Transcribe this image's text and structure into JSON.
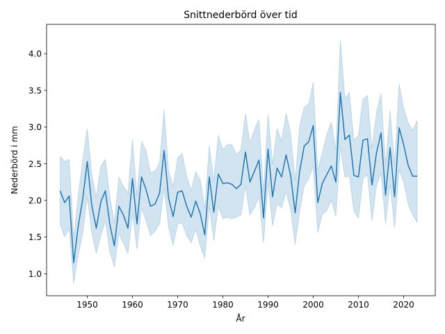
{
  "chart_data": {
    "type": "line",
    "title": "Snittnederbörd över tid",
    "xlabel": "År",
    "ylabel": "Nederbörd i mm",
    "xlim": [
      1941,
      2027
    ],
    "ylim": [
      0.7,
      4.4
    ],
    "xticks": [
      1950,
      1960,
      1970,
      1980,
      1990,
      2000,
      2010,
      2020
    ],
    "yticks": [
      1.0,
      1.5,
      2.0,
      2.5,
      3.0,
      3.5,
      4.0
    ],
    "grid": false,
    "colors": {
      "line": "#1f77b4",
      "band": "#1f77b4"
    },
    "series": [
      {
        "name": "Nederbörd",
        "x": [
          1944,
          1945,
          1946,
          1947,
          1948,
          1949,
          1950,
          1951,
          1952,
          1953,
          1954,
          1955,
          1956,
          1957,
          1958,
          1959,
          1960,
          1961,
          1962,
          1963,
          1964,
          1965,
          1966,
          1967,
          1968,
          1969,
          1970,
          1971,
          1972,
          1973,
          1974,
          1975,
          1976,
          1977,
          1978,
          1979,
          1980,
          1981,
          1982,
          1983,
          1984,
          1985,
          1986,
          1987,
          1988,
          1989,
          1990,
          1991,
          1992,
          1993,
          1994,
          1995,
          1996,
          1997,
          1998,
          1999,
          2000,
          2001,
          2002,
          2003,
          2004,
          2005,
          2006,
          2007,
          2008,
          2009,
          2010,
          2011,
          2012,
          2013,
          2014,
          2015,
          2016,
          2017,
          2018,
          2019,
          2020,
          2021,
          2022,
          2023
        ],
        "y": [
          2.13,
          1.97,
          2.06,
          1.15,
          1.65,
          2.02,
          2.53,
          1.93,
          1.62,
          1.98,
          2.13,
          1.67,
          1.38,
          1.92,
          1.8,
          1.62,
          2.3,
          1.68,
          2.32,
          2.15,
          1.92,
          1.95,
          2.1,
          2.68,
          2.03,
          1.78,
          2.11,
          2.13,
          1.92,
          1.77,
          1.99,
          1.82,
          1.53,
          2.32,
          1.84,
          2.36,
          2.23,
          2.24,
          2.22,
          2.16,
          2.22,
          2.66,
          2.25,
          2.4,
          2.55,
          1.76,
          2.7,
          2.05,
          2.44,
          2.32,
          2.62,
          2.34,
          1.83,
          2.4,
          2.74,
          2.8,
          3.02,
          1.97,
          2.23,
          2.35,
          2.47,
          2.25,
          3.47,
          2.83,
          2.89,
          2.34,
          2.32,
          2.82,
          2.84,
          2.21,
          2.65,
          2.92,
          2.07,
          2.72,
          2.05,
          2.99,
          2.76,
          2.48,
          2.33,
          2.33
        ],
        "ci_lower": [
          1.67,
          1.5,
          1.62,
          0.87,
          1.25,
          1.55,
          2.05,
          1.55,
          1.28,
          1.52,
          1.72,
          1.3,
          1.09,
          1.55,
          1.42,
          1.27,
          1.82,
          1.33,
          1.9,
          1.72,
          1.52,
          1.58,
          1.68,
          2.17,
          1.63,
          1.38,
          1.68,
          1.69,
          1.52,
          1.42,
          1.6,
          1.38,
          1.21,
          1.92,
          1.45,
          1.92,
          1.75,
          1.77,
          1.75,
          1.77,
          1.8,
          2.2,
          1.8,
          1.9,
          2.05,
          1.42,
          2.24,
          1.65,
          1.95,
          1.9,
          2.12,
          1.87,
          1.4,
          1.85,
          2.2,
          2.29,
          2.47,
          1.56,
          1.81,
          1.86,
          2.0,
          1.78,
          2.73,
          2.32,
          2.33,
          1.85,
          1.76,
          2.3,
          2.35,
          1.72,
          2.2,
          2.37,
          1.68,
          2.22,
          1.63,
          2.42,
          2.25,
          1.95,
          1.8,
          1.7
        ],
        "ci_upper": [
          2.6,
          2.53,
          2.56,
          1.48,
          2.07,
          2.55,
          2.98,
          2.36,
          2.04,
          2.47,
          2.56,
          2.05,
          1.69,
          2.32,
          2.19,
          2.1,
          2.83,
          2.06,
          2.8,
          2.68,
          2.38,
          2.4,
          2.51,
          3.24,
          2.4,
          2.19,
          2.57,
          2.64,
          2.33,
          2.14,
          2.39,
          2.28,
          1.89,
          2.75,
          2.27,
          2.89,
          2.69,
          2.76,
          2.76,
          2.62,
          2.69,
          3.18,
          2.79,
          2.97,
          3.1,
          2.11,
          3.18,
          2.49,
          2.98,
          2.81,
          3.19,
          2.91,
          2.27,
          3.01,
          3.27,
          3.32,
          3.61,
          2.41,
          2.65,
          2.9,
          3.07,
          2.68,
          4.19,
          3.39,
          3.47,
          2.82,
          2.89,
          3.38,
          3.43,
          2.7,
          3.2,
          3.46,
          2.47,
          3.23,
          2.48,
          3.59,
          3.26,
          3.06,
          2.95,
          3.09
        ]
      }
    ]
  }
}
